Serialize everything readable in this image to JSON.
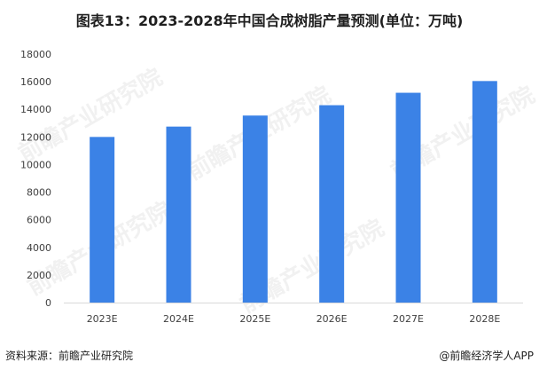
{
  "title": "图表13：2023-2028年中国合成树脂产量预测(单位：万吨)",
  "chart_data": {
    "type": "bar",
    "categories": [
      "2023E",
      "2024E",
      "2025E",
      "2026E",
      "2027E",
      "2028E"
    ],
    "values": [
      12000,
      12750,
      13550,
      14300,
      15200,
      16050
    ],
    "ylim": [
      0,
      18000
    ],
    "yticks": [
      0,
      2000,
      4000,
      6000,
      8000,
      10000,
      12000,
      14000,
      16000,
      18000
    ],
    "grid": false,
    "bar_color": "#3b82e6"
  },
  "footer": {
    "source": "资料来源：前瞻产业研究院",
    "brand": "@前瞻经济学人APP"
  },
  "watermark": {
    "text": "前瞻产业研究院"
  }
}
